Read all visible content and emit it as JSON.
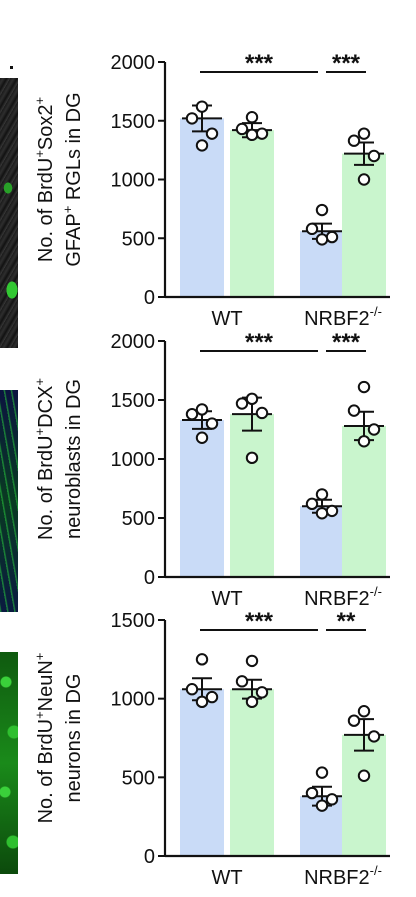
{
  "chart_data": [
    {
      "type": "bar",
      "categories": [
        "WT",
        "NRBF2-/-"
      ],
      "category_labels": [
        {
          "main": "WT",
          "sup": ""
        },
        {
          "main": "NRBF2",
          "sup": "-/-"
        }
      ],
      "ylabel_lines": [
        [
          {
            "t": "No. of BrdU"
          },
          {
            "t": "+",
            "sup": true
          },
          {
            "t": "Sox2"
          },
          {
            "t": "+",
            "sup": true
          }
        ],
        [
          {
            "t": "GFAP"
          },
          {
            "t": "+",
            "sup": true
          },
          {
            "t": " RGLs in DG"
          }
        ]
      ],
      "ylim": [
        0,
        2000
      ],
      "yticks": [
        "0",
        "500",
        "1000",
        "1500",
        "2000"
      ],
      "series": [
        {
          "values": [
            1520,
            560
          ],
          "errors": [
            110,
            65
          ],
          "points": [
            [
              1620,
              1520,
              1390,
              1290
            ],
            [
              740,
              580,
              510,
              490
            ]
          ]
        },
        {
          "values": [
            1420,
            1220
          ],
          "errors": [
            60,
            95
          ],
          "points": [
            [
              1530,
              1430,
              1390,
              1380
            ],
            [
              1390,
              1330,
              1200,
              1000
            ]
          ]
        }
      ],
      "significance": [
        {
          "groups": [
            "WT-blue",
            "NRBF2-blue"
          ],
          "label": "***"
        },
        {
          "groups": [
            "NRBF2-blue",
            "NRBF2-green"
          ],
          "label": "***"
        }
      ]
    },
    {
      "type": "bar",
      "categories": [
        "WT",
        "NRBF2-/-"
      ],
      "category_labels": [
        {
          "main": "WT",
          "sup": ""
        },
        {
          "main": "NRBF2",
          "sup": "-/-"
        }
      ],
      "ylabel_lines": [
        [
          {
            "t": "No. of BrdU"
          },
          {
            "t": "+",
            "sup": true
          },
          {
            "t": "DCX"
          },
          {
            "t": "+",
            "sup": true
          }
        ],
        [
          {
            "t": "neuroblasts in DG"
          }
        ]
      ],
      "ylim": [
        0,
        2000
      ],
      "yticks": [
        "0",
        "500",
        "1000",
        "1500",
        "2000"
      ],
      "series": [
        {
          "values": [
            1330,
            600
          ],
          "errors": [
            75,
            55
          ],
          "points": [
            [
              1420,
              1380,
              1300,
              1180
            ],
            [
              700,
              620,
              560,
              540
            ]
          ]
        },
        {
          "values": [
            1380,
            1280
          ],
          "errors": [
            140,
            120
          ],
          "points": [
            [
              1510,
              1470,
              1390,
              1010
            ],
            [
              1610,
              1410,
              1250,
              1150
            ]
          ]
        }
      ],
      "significance": [
        {
          "groups": [
            "WT-blue",
            "NRBF2-blue"
          ],
          "label": "***"
        },
        {
          "groups": [
            "NRBF2-blue",
            "NRBF2-green"
          ],
          "label": "***"
        }
      ]
    },
    {
      "type": "bar",
      "categories": [
        "WT",
        "NRBF2-/-"
      ],
      "category_labels": [
        {
          "main": "WT",
          "sup": ""
        },
        {
          "main": "NRBF2",
          "sup": "-/-"
        }
      ],
      "ylabel_lines": [
        [
          {
            "t": "No. of BrdU"
          },
          {
            "t": "+",
            "sup": true
          },
          {
            "t": "NeuN"
          },
          {
            "t": "+",
            "sup": true
          }
        ],
        [
          {
            "t": "neurons in DG"
          }
        ]
      ],
      "ylim": [
        0,
        1500
      ],
      "yticks": [
        "0",
        "500",
        "1000",
        "1500"
      ],
      "series": [
        {
          "values": [
            1060,
            380
          ],
          "errors": [
            70,
            60
          ],
          "points": [
            [
              1250,
              1060,
              1010,
              980
            ],
            [
              530,
              400,
              360,
              320
            ]
          ]
        },
        {
          "values": [
            1060,
            770
          ],
          "errors": [
            60,
            100
          ],
          "points": [
            [
              1240,
              1110,
              1040,
              980
            ],
            [
              920,
              860,
              760,
              510
            ]
          ]
        }
      ],
      "significance": [
        {
          "groups": [
            "WT-blue",
            "NRBF2-blue"
          ],
          "label": "***"
        },
        {
          "groups": [
            "NRBF2-blue",
            "NRBF2-green"
          ],
          "label": "**"
        }
      ]
    }
  ],
  "colors": {
    "wt_bar": "#c9dbf7",
    "ko_bar": "#c9f5cd",
    "ink": "#111111"
  }
}
